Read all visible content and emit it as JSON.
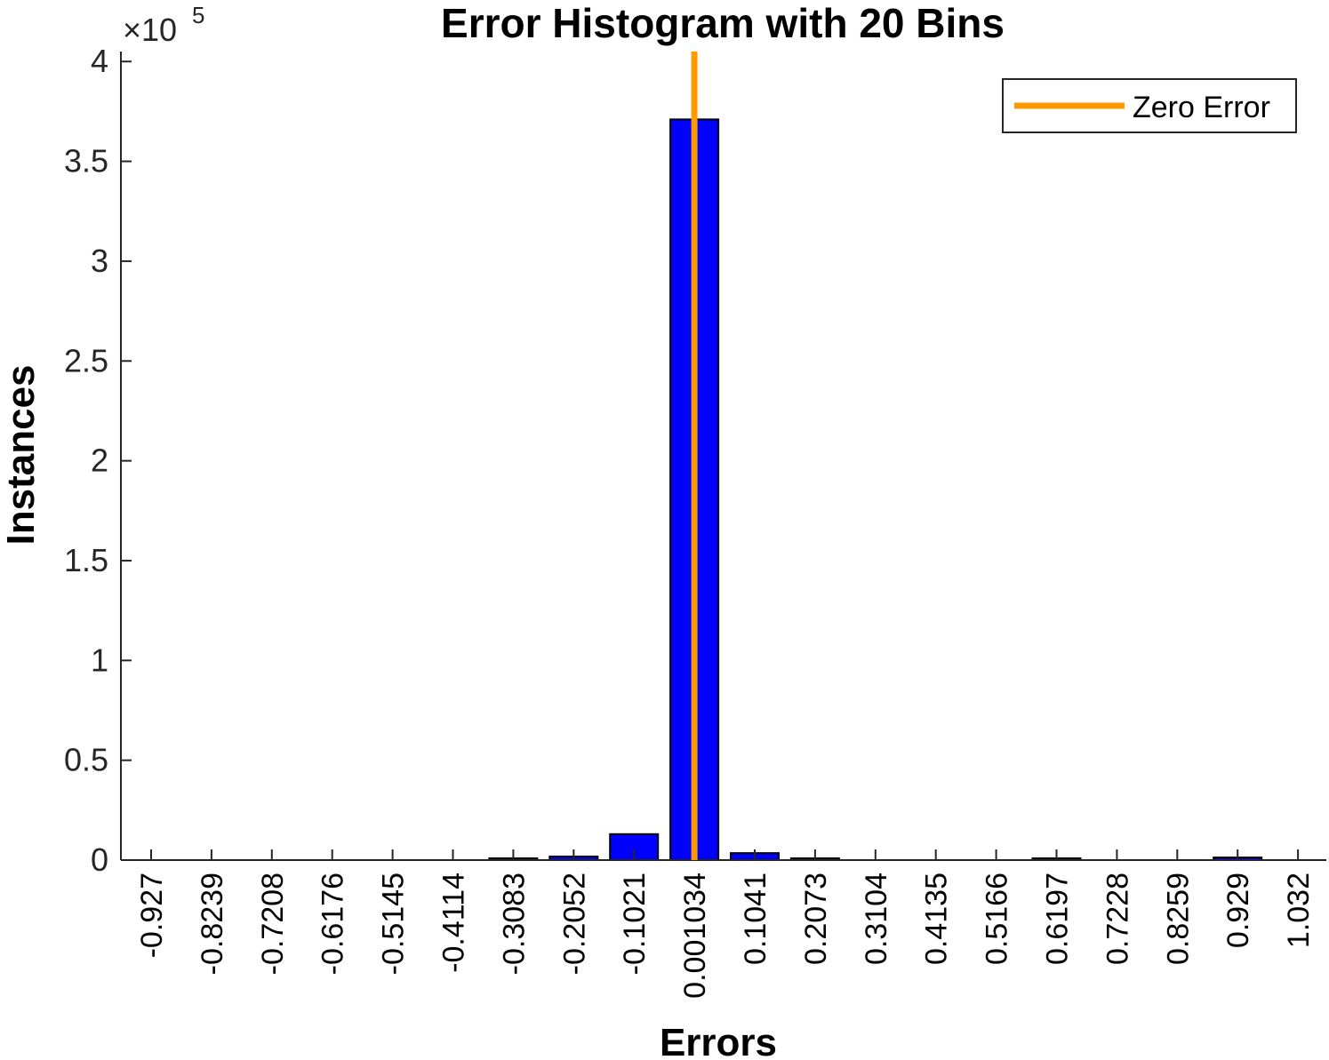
{
  "chart_data": {
    "type": "bar",
    "title": "Error Histogram with 20 Bins",
    "xlabel": "Errors",
    "ylabel": "Instances",
    "y_exponent_label": "×10",
    "y_exponent_power": "5",
    "categories": [
      "-0.927",
      "-0.8239",
      "-0.7208",
      "-0.6176",
      "-0.5145",
      "-0.4114",
      "-0.3083",
      "-0.2052",
      "-0.1021",
      "0.001034",
      "0.1041",
      "0.2073",
      "0.3104",
      "0.4135",
      "0.5166",
      "0.6197",
      "0.7228",
      "0.8259",
      "0.929",
      "1.032"
    ],
    "y_ticks": [
      "0",
      "0.5",
      "1",
      "1.5",
      "2",
      "2.5",
      "3",
      "3.5",
      "4"
    ],
    "ylim": [
      0,
      405000
    ],
    "series": [
      {
        "values": [
          0,
          0,
          0,
          0,
          0,
          0,
          300,
          1800,
          13000,
          371000,
          3500,
          400,
          0,
          0,
          0,
          300,
          0,
          0,
          1300,
          0
        ],
        "color": "#0000FF"
      }
    ],
    "zero_line": {
      "x_category_index": 9,
      "color": "#FF9900",
      "label": "Zero Error"
    },
    "legend_position": "top-right",
    "grid": false
  }
}
